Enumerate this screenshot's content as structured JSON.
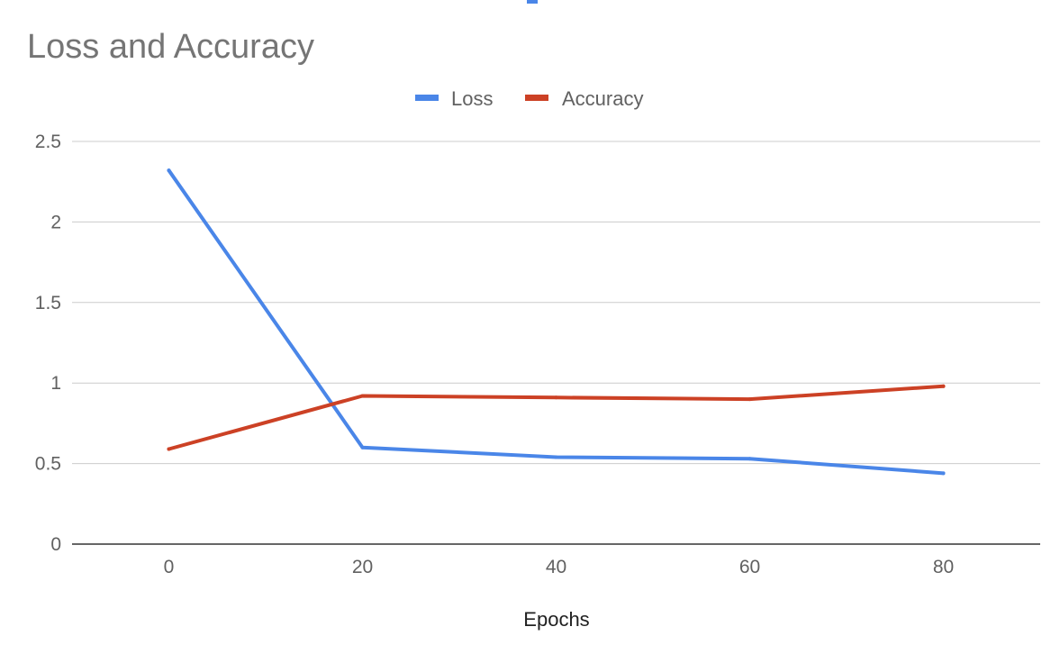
{
  "chart_data": {
    "type": "line",
    "title": "Loss and Accuracy",
    "xlabel": "Epochs",
    "ylabel": "",
    "x": [
      0,
      20,
      40,
      60,
      80
    ],
    "x_ticks": [
      "0",
      "20",
      "40",
      "60",
      "80"
    ],
    "y_ticks": [
      "0",
      "0.5",
      "1",
      "1.5",
      "2",
      "2.5"
    ],
    "ylim": [
      0,
      2.5
    ],
    "xlim": [
      -10,
      90
    ],
    "grid": true,
    "legend_position": "top",
    "series": [
      {
        "name": "Loss",
        "color": "#4a86e8",
        "values": [
          2.32,
          0.6,
          0.54,
          0.53,
          0.44
        ]
      },
      {
        "name": "Accuracy",
        "color": "#cc4125",
        "values": [
          0.59,
          0.92,
          0.91,
          0.9,
          0.98
        ]
      }
    ]
  }
}
